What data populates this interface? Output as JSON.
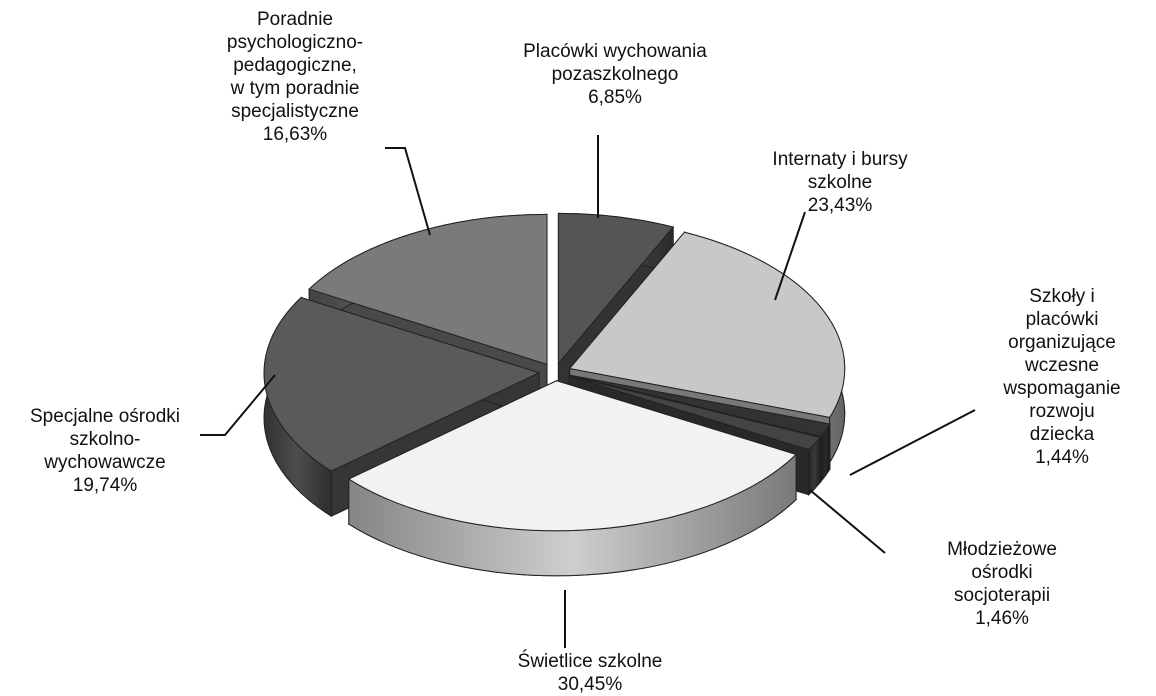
{
  "chart_data": {
    "type": "pie3d",
    "categories": [
      "Placówki wychowania\npozaszkolnego",
      "Internaty i bursy\nszkolne",
      "Szkoły i placówki\norganizujące\nwczesne\nwspomaganie\nrozwoju dziecka",
      "Młodzieżowe ośrodki\nsocjoterapii",
      "Świetlice szkolne",
      "Specjalne ośrodki\nszkolno-\nwychowawcze",
      "Poradnie\npsychologiczno-\npedagogiczne,\nw tym poradnie\nspecjalistyczne"
    ],
    "values": [
      6.85,
      23.43,
      1.44,
      1.46,
      30.45,
      19.74,
      16.63
    ],
    "value_labels": [
      "6,85%",
      "23,43%",
      "1,44%",
      "1,46%",
      "30,45%",
      "19,74%",
      "16,63%"
    ],
    "colors": [
      "#555555",
      "#c8c8c8",
      "#333333",
      "#444444",
      "#f2f2f2",
      "#5a5a5a",
      "#7a7a7a"
    ]
  }
}
